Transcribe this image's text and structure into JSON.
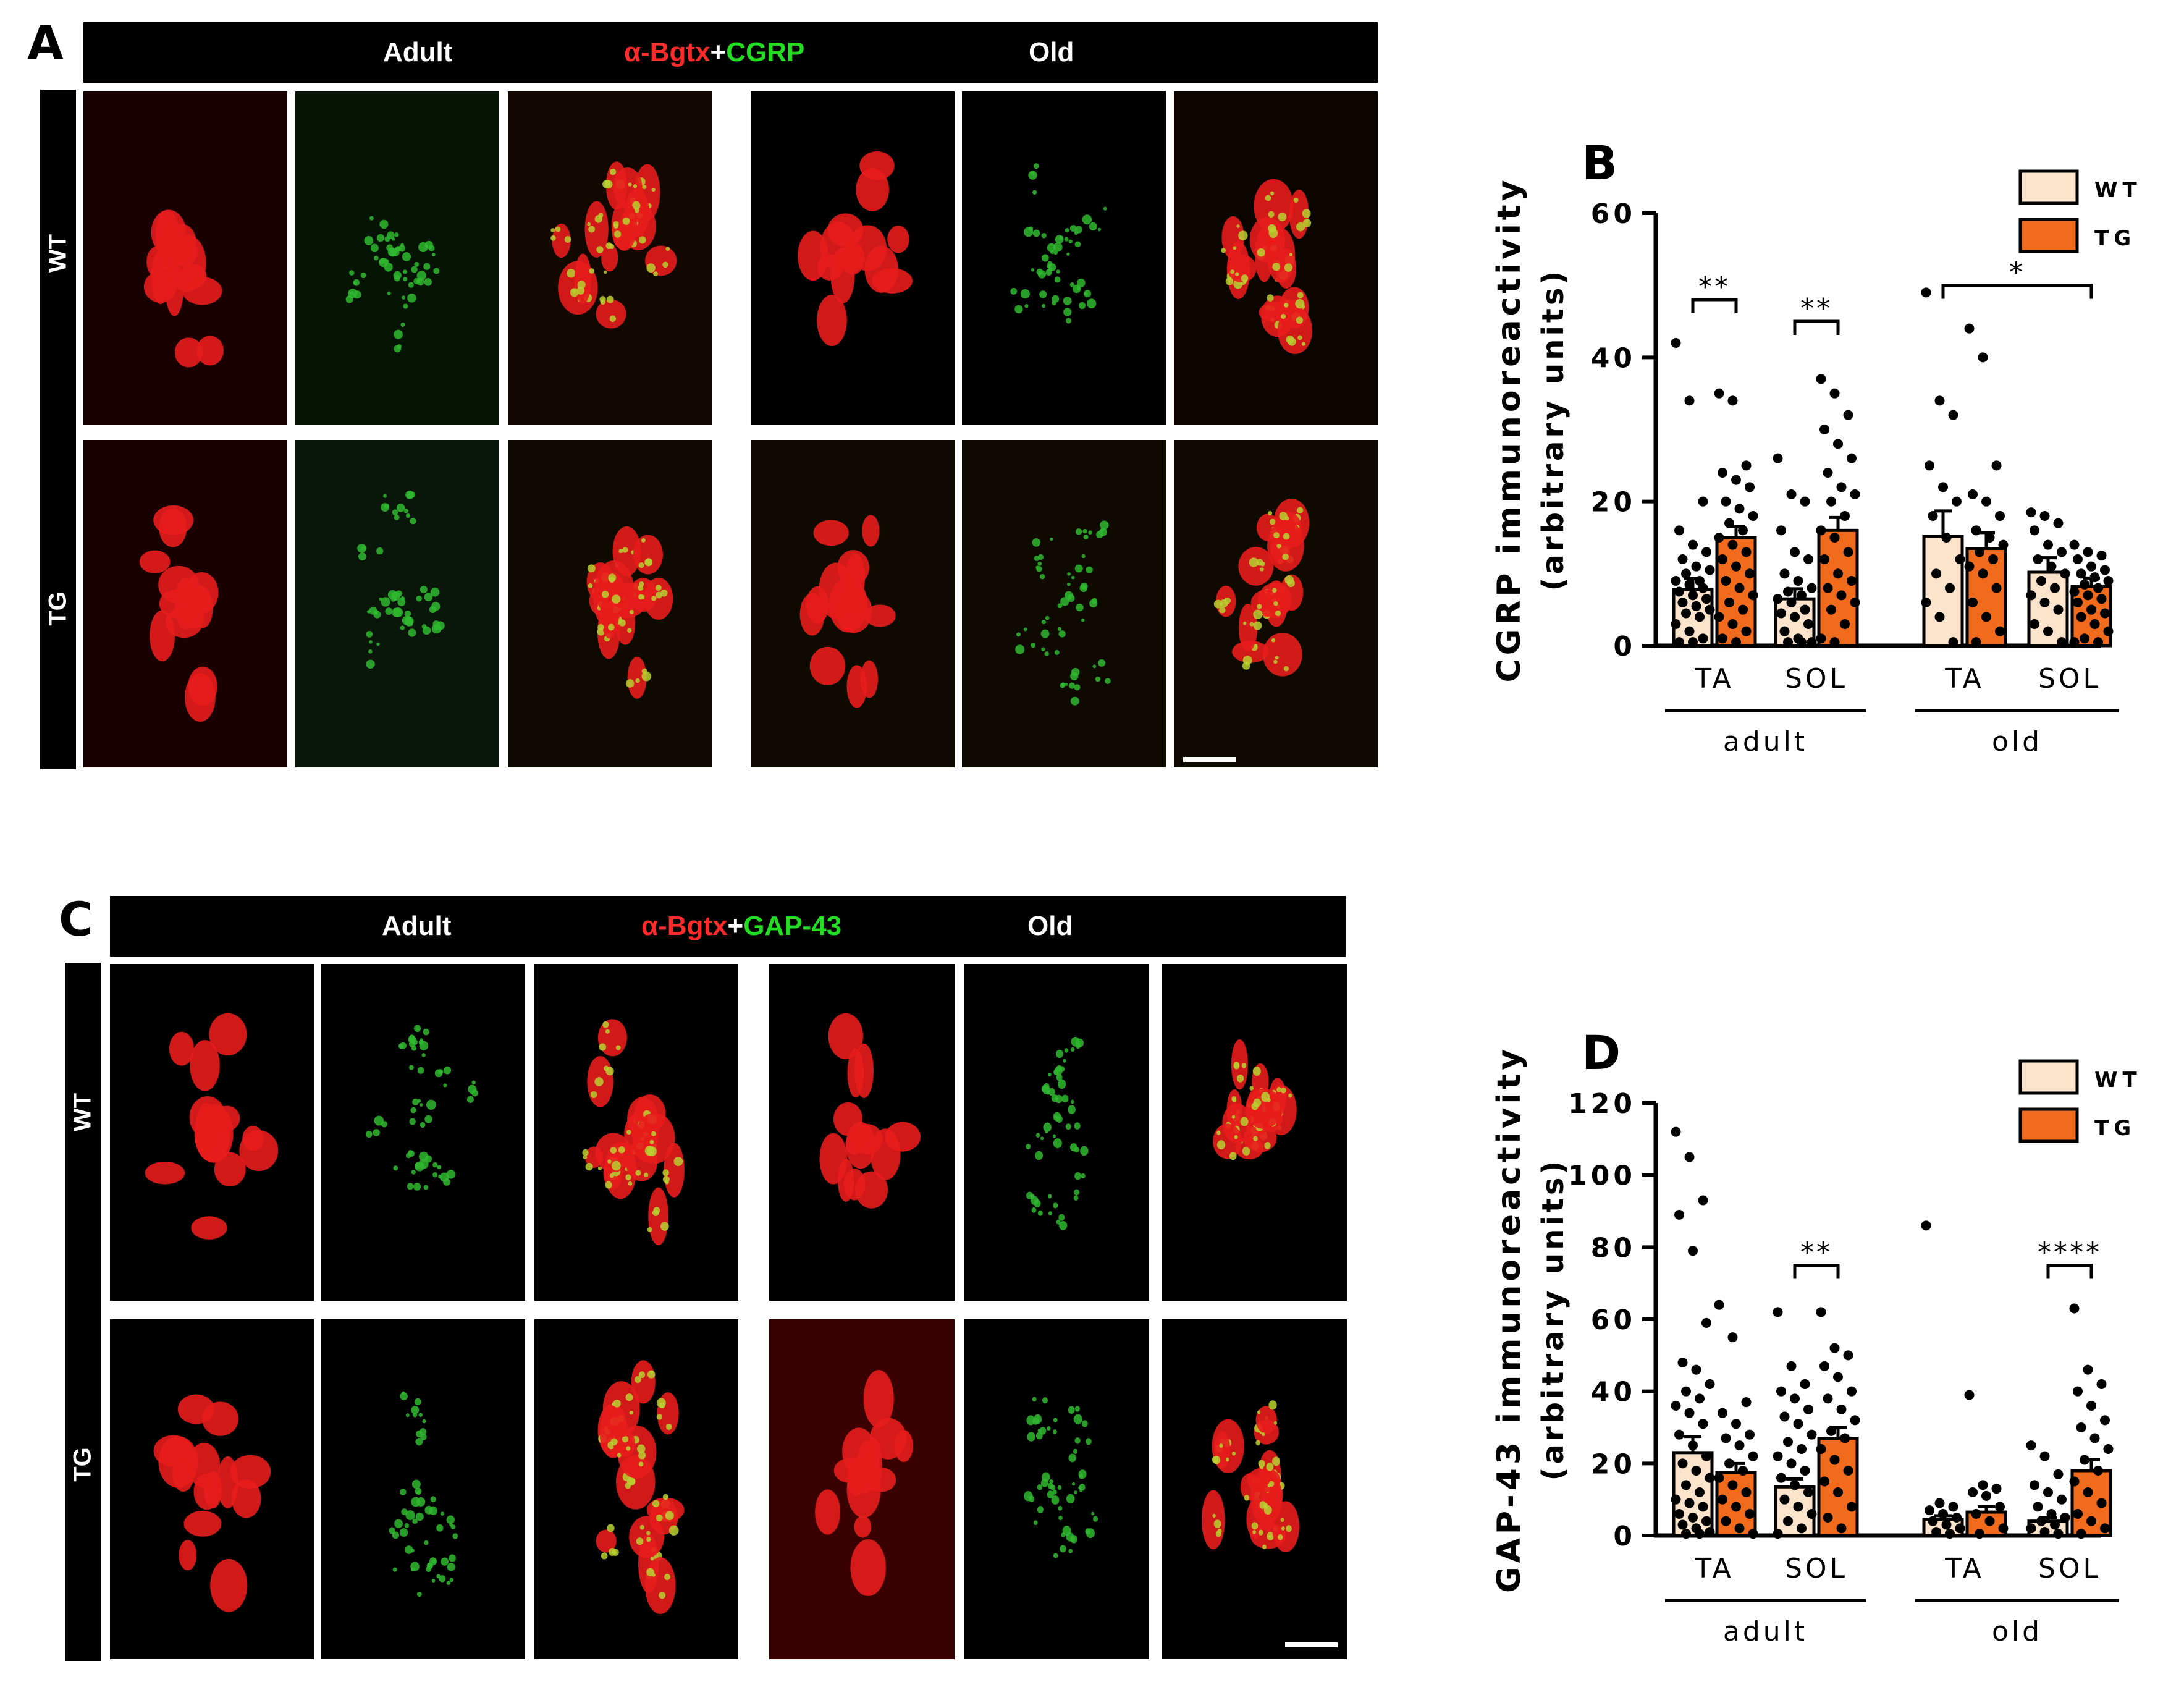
{
  "panel_a": {
    "letter": "A",
    "header": {
      "left": "Adult",
      "marker_red": "α-Bgtx",
      "plus": "+",
      "marker_green": "CGRP",
      "right": "Old"
    },
    "rows": [
      "WT",
      "TG"
    ]
  },
  "panel_c": {
    "letter": "C",
    "header": {
      "left": "Adult",
      "marker_red": "α-Bgtx",
      "plus": "+",
      "marker_green": "GAP-43",
      "right": "Old"
    },
    "rows": [
      "WT",
      "TG"
    ]
  },
  "colors": {
    "wt": "#fce3cc",
    "tg": "#f26b1d",
    "red_channel": "#ff2a2a",
    "green_channel": "#22dd22"
  },
  "chart_data": [
    {
      "type": "bar",
      "panel": "B",
      "ylabel": "CGRP immunoreactivity",
      "ylabel2": "(arbitrary units)",
      "ylim": [
        0,
        60
      ],
      "yticks": [
        "0",
        "20",
        "40",
        "60"
      ],
      "categories": [
        "TA",
        "SOL",
        "TA",
        "SOL"
      ],
      "groups": [
        "adult",
        "old"
      ],
      "legend": [
        "WT",
        "TG"
      ],
      "series": [
        {
          "name": "WT",
          "values": [
            7.8,
            6.5,
            15.2,
            10.2
          ],
          "sem": [
            1.5,
            1.4,
            3.5,
            2.0
          ]
        },
        {
          "name": "TG",
          "values": [
            15.0,
            16.0,
            13.5,
            8.2
          ],
          "sem": [
            1.5,
            1.8,
            2.2,
            1.2
          ]
        }
      ],
      "significance": [
        {
          "label": "**",
          "from": [
            0,
            "WT"
          ],
          "to": [
            0,
            "TG"
          ],
          "y": 48
        },
        {
          "label": "**",
          "from": [
            1,
            "WT"
          ],
          "to": [
            1,
            "TG"
          ],
          "y": 45
        },
        {
          "label": "*",
          "from": [
            2,
            "WT"
          ],
          "to": [
            3,
            "TG"
          ],
          "y": 50
        }
      ],
      "points": {
        "WT": [
          [
            42,
            34,
            20,
            16,
            14,
            13,
            12,
            11,
            10.5,
            10,
            9,
            9,
            8.5,
            8,
            7.5,
            7,
            6.5,
            6,
            5.5,
            5,
            4.5,
            4,
            3,
            2,
            1,
            0.5,
            0.5
          ],
          [
            26,
            21,
            20,
            16,
            13,
            12,
            10,
            9,
            8,
            7.5,
            7,
            6.5,
            6,
            5,
            4.5,
            4,
            3,
            2,
            1,
            0.5,
            0.5,
            0.5
          ],
          [
            49,
            34,
            32,
            25,
            22,
            20,
            18,
            15,
            12,
            10,
            8,
            6,
            4,
            0.5
          ],
          [
            18.5,
            18,
            17,
            16,
            14,
            13,
            12,
            11,
            10,
            9,
            8,
            7,
            6,
            5,
            3,
            2,
            0.5
          ]
        ],
        "TG": [
          [
            35,
            34,
            25,
            24,
            23,
            22,
            20,
            19,
            18,
            17,
            16,
            15,
            14,
            13,
            12,
            11,
            10,
            9,
            8,
            7,
            6,
            5,
            4,
            3,
            2,
            1,
            0.5
          ],
          [
            37,
            35,
            32,
            30,
            28,
            26,
            24,
            22,
            21,
            20,
            18,
            16,
            15,
            13,
            12,
            10,
            9,
            8,
            7,
            6,
            5,
            3,
            1,
            0.5
          ],
          [
            44,
            40,
            25,
            21,
            20,
            18,
            16,
            15,
            14,
            13,
            12,
            11,
            10,
            8,
            6,
            4,
            2,
            0.5
          ],
          [
            14,
            13,
            12.5,
            12,
            11,
            10.5,
            10,
            9.5,
            9,
            8.5,
            8,
            7.5,
            7,
            6.5,
            6,
            5,
            4.5,
            4,
            3,
            2,
            1,
            0.5,
            0.5
          ]
        ]
      }
    },
    {
      "type": "bar",
      "panel": "D",
      "ylabel": "GAP-43 immunoreactivity",
      "ylabel2": "(arbitrary units)",
      "ylim": [
        0,
        120
      ],
      "yticks": [
        "0",
        "20",
        "40",
        "60",
        "80",
        "100",
        "120"
      ],
      "categories": [
        "TA",
        "SOL",
        "TA",
        "SOL"
      ],
      "groups": [
        "adult",
        "old"
      ],
      "legend": [
        "WT",
        "TG"
      ],
      "series": [
        {
          "name": "WT",
          "values": [
            23.0,
            13.5,
            4.5,
            4.0
          ],
          "sem": [
            4.5,
            2.2,
            1.0,
            1.0
          ]
        },
        {
          "name": "TG",
          "values": [
            17.5,
            27.0,
            6.5,
            18.0
          ],
          "sem": [
            2.5,
            3.0,
            1.5,
            3.0
          ]
        }
      ],
      "significance": [
        {
          "label": "**",
          "from": [
            1,
            "WT"
          ],
          "to": [
            1,
            "TG"
          ],
          "y": 75
        },
        {
          "label": "****",
          "from": [
            3,
            "WT"
          ],
          "to": [
            3,
            "TG"
          ],
          "y": 75
        }
      ],
      "points": {
        "WT": [
          [
            112,
            105,
            93,
            89,
            79,
            59,
            48,
            46,
            42,
            40,
            38,
            36,
            34,
            31,
            28,
            25,
            22,
            20,
            18,
            16,
            14,
            12,
            10,
            9,
            8,
            6,
            5,
            4,
            3,
            2,
            1,
            0.5,
            0.5
          ],
          [
            62,
            47,
            42,
            40,
            38,
            35,
            33,
            31,
            28,
            26,
            24,
            22,
            20,
            18,
            16,
            14,
            12,
            10,
            8,
            6,
            4,
            2,
            0.5
          ],
          [
            86,
            9,
            8,
            7,
            6,
            5,
            4,
            3,
            2,
            1,
            0.5
          ],
          [
            25,
            22,
            17,
            14,
            12,
            10,
            8,
            6,
            5,
            4,
            3,
            2,
            1,
            0.5
          ]
        ],
        "TG": [
          [
            64,
            55,
            37,
            34,
            31,
            28,
            27,
            25,
            22,
            20,
            18,
            16,
            14,
            12,
            10,
            8,
            6,
            4,
            2,
            0.5
          ],
          [
            62,
            52,
            50,
            47,
            44,
            40,
            38,
            35,
            32,
            29,
            27,
            24,
            21,
            18,
            15,
            12,
            8,
            5,
            2
          ],
          [
            39,
            14,
            13,
            12,
            11,
            8,
            6,
            4,
            2,
            0.5
          ],
          [
            63,
            46,
            42,
            40,
            36,
            32,
            30,
            27,
            24,
            21,
            18,
            15,
            12,
            9,
            6,
            4,
            2,
            0.5
          ]
        ]
      }
    }
  ]
}
